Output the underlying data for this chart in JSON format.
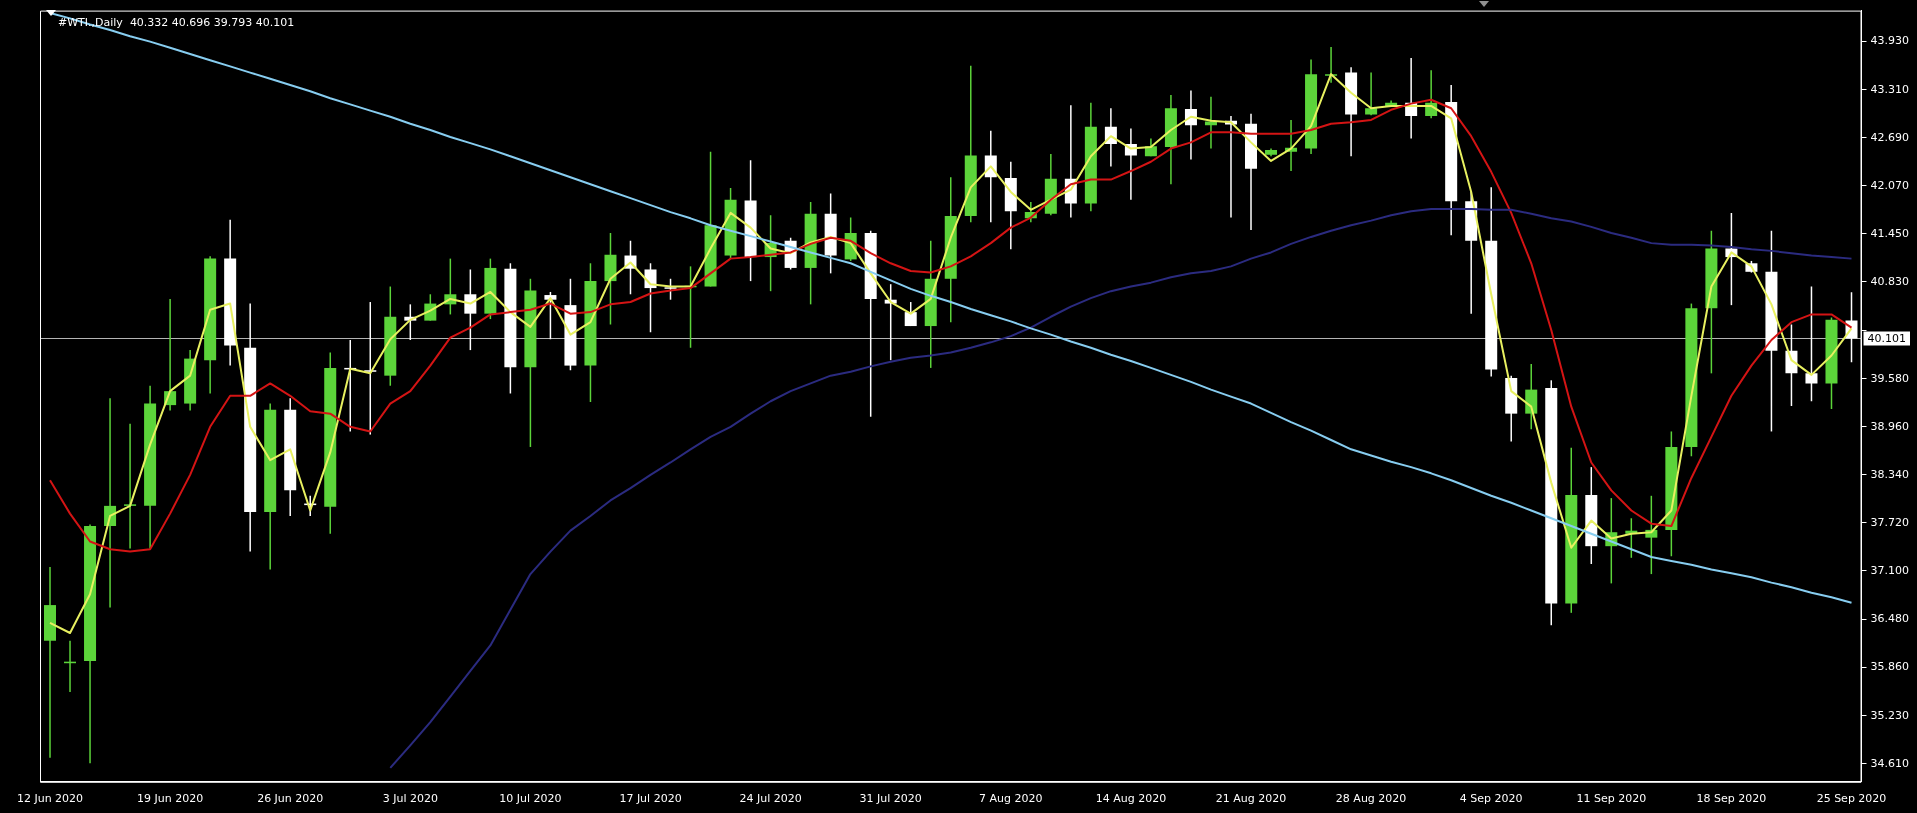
{
  "chart_data": {
    "type": "candlestick",
    "title": "#WTI.,Daily  40.332 40.696 39.793 40.101",
    "categories": [
      "12 Jun 2020",
      null,
      null,
      null,
      null,
      null,
      "19 Jun 2020",
      null,
      null,
      null,
      null,
      null,
      "26 Jun 2020",
      null,
      null,
      null,
      null,
      null,
      "3 Jul 2020",
      null,
      null,
      null,
      null,
      null,
      "10 Jul 2020",
      null,
      null,
      null,
      null,
      null,
      "17 Jul 2020",
      null,
      null,
      null,
      null,
      null,
      "24 Jul 2020",
      null,
      null,
      null,
      null,
      null,
      "31 Jul 2020",
      null,
      null,
      null,
      null,
      null,
      "7 Aug 2020",
      null,
      null,
      null,
      null,
      null,
      "14 Aug 2020",
      null,
      null,
      null,
      null,
      null,
      "21 Aug 2020",
      null,
      null,
      null,
      null,
      null,
      "28 Aug 2020",
      null,
      null,
      null,
      null,
      null,
      "4 Sep 2020",
      null,
      null,
      null,
      null,
      null,
      "11 Sep 2020",
      null,
      null,
      null,
      null,
      null,
      "18 Sep 2020",
      null,
      null,
      null,
      null,
      null,
      "25 Sep 2020"
    ],
    "ohlc": [
      [
        36.2,
        37.15,
        34.69,
        36.66
      ],
      [
        35.91,
        36.2,
        35.54,
        35.93
      ],
      [
        35.94,
        37.7,
        34.62,
        37.68
      ],
      [
        37.68,
        39.33,
        36.63,
        37.94
      ],
      [
        37.94,
        39.0,
        37.39,
        37.96
      ],
      [
        37.94,
        39.49,
        37.39,
        39.26
      ],
      [
        39.24,
        40.61,
        39.17,
        39.42
      ],
      [
        39.26,
        39.95,
        39.17,
        39.84
      ],
      [
        39.82,
        41.16,
        39.39,
        41.13
      ],
      [
        41.13,
        41.63,
        39.75,
        40.01
      ],
      [
        39.98,
        40.55,
        37.35,
        37.86
      ],
      [
        37.86,
        39.26,
        37.12,
        39.18
      ],
      [
        39.18,
        39.33,
        37.81,
        38.14
      ],
      [
        37.97,
        38.07,
        37.81,
        37.95
      ],
      [
        37.93,
        39.92,
        37.58,
        39.72
      ],
      [
        39.72,
        40.08,
        38.9,
        39.7
      ],
      [
        39.69,
        40.57,
        38.86,
        39.67
      ],
      [
        39.62,
        40.77,
        39.49,
        40.38
      ],
      [
        40.38,
        40.54,
        40.08,
        40.33
      ],
      [
        40.33,
        40.67,
        40.33,
        40.55
      ],
      [
        40.54,
        41.13,
        40.41,
        40.67
      ],
      [
        40.67,
        40.99,
        39.95,
        40.42
      ],
      [
        40.42,
        41.13,
        40.35,
        41.01
      ],
      [
        41.0,
        41.07,
        39.39,
        39.73
      ],
      [
        39.73,
        40.87,
        38.7,
        40.72
      ],
      [
        40.66,
        40.7,
        40.09,
        40.6
      ],
      [
        40.53,
        40.87,
        39.69,
        39.75
      ],
      [
        39.75,
        41.07,
        39.28,
        40.84
      ],
      [
        40.84,
        41.46,
        40.28,
        41.18
      ],
      [
        41.17,
        41.36,
        40.67,
        41.0
      ],
      [
        40.99,
        41.07,
        40.18,
        40.75
      ],
      [
        40.76,
        40.87,
        40.6,
        40.75
      ],
      [
        40.76,
        41.03,
        39.98,
        40.78
      ],
      [
        40.77,
        42.51,
        40.77,
        41.56
      ],
      [
        41.17,
        42.04,
        41.13,
        41.89
      ],
      [
        41.88,
        42.4,
        40.84,
        41.15
      ],
      [
        41.15,
        41.69,
        40.71,
        41.33
      ],
      [
        41.36,
        41.4,
        40.99,
        41.01
      ],
      [
        41.01,
        41.86,
        40.54,
        41.71
      ],
      [
        41.71,
        41.97,
        40.94,
        41.17
      ],
      [
        41.12,
        41.66,
        41.1,
        41.46
      ],
      [
        41.46,
        41.49,
        39.09,
        40.61
      ],
      [
        40.6,
        40.8,
        39.82,
        40.55
      ],
      [
        40.44,
        40.57,
        40.26,
        40.26
      ],
      [
        40.26,
        41.36,
        39.72,
        40.87
      ],
      [
        40.87,
        42.18,
        40.31,
        41.68
      ],
      [
        41.68,
        43.62,
        41.6,
        42.46
      ],
      [
        42.46,
        42.78,
        41.6,
        42.18
      ],
      [
        42.17,
        42.38,
        41.25,
        41.74
      ],
      [
        41.65,
        41.86,
        41.6,
        41.73
      ],
      [
        41.71,
        42.48,
        41.69,
        42.16
      ],
      [
        42.16,
        43.11,
        41.66,
        41.84
      ],
      [
        41.84,
        43.14,
        41.74,
        42.83
      ],
      [
        42.83,
        43.07,
        42.32,
        42.61
      ],
      [
        42.61,
        42.81,
        41.89,
        42.46
      ],
      [
        42.45,
        42.68,
        42.45,
        42.58
      ],
      [
        42.57,
        43.24,
        42.09,
        43.07
      ],
      [
        43.06,
        43.3,
        42.41,
        42.85
      ],
      [
        42.85,
        43.22,
        42.55,
        42.9
      ],
      [
        42.91,
        42.97,
        41.66,
        42.86
      ],
      [
        42.87,
        43.0,
        41.5,
        42.29
      ],
      [
        42.47,
        42.55,
        42.45,
        42.53
      ],
      [
        42.51,
        42.92,
        42.26,
        42.56
      ],
      [
        42.55,
        43.7,
        42.48,
        43.51
      ],
      [
        43.49,
        43.86,
        43.4,
        43.51
      ],
      [
        43.53,
        43.6,
        42.45,
        42.99
      ],
      [
        42.99,
        43.53,
        42.98,
        43.07
      ],
      [
        43.1,
        43.17,
        43.09,
        43.14
      ],
      [
        43.14,
        43.72,
        42.68,
        42.97
      ],
      [
        42.97,
        43.56,
        42.94,
        43.14
      ],
      [
        43.15,
        43.37,
        41.43,
        41.87
      ],
      [
        41.87,
        41.99,
        40.42,
        41.36
      ],
      [
        41.36,
        42.05,
        39.61,
        39.7
      ],
      [
        39.59,
        39.62,
        38.77,
        39.13
      ],
      [
        39.13,
        39.77,
        38.93,
        39.44
      ],
      [
        39.46,
        39.56,
        36.4,
        36.68
      ],
      [
        36.68,
        38.69,
        36.56,
        38.08
      ],
      [
        38.08,
        38.44,
        37.19,
        37.42
      ],
      [
        37.42,
        38.04,
        36.94,
        37.6
      ],
      [
        37.58,
        37.78,
        37.27,
        37.62
      ],
      [
        37.53,
        38.07,
        37.06,
        37.63
      ],
      [
        37.63,
        38.9,
        37.29,
        38.7
      ],
      [
        38.7,
        40.55,
        38.58,
        40.49
      ],
      [
        40.49,
        41.49,
        39.65,
        41.26
      ],
      [
        41.26,
        41.72,
        40.53,
        41.15
      ],
      [
        41.07,
        41.1,
        40.95,
        40.96
      ],
      [
        40.96,
        41.49,
        38.9,
        39.94
      ],
      [
        39.94,
        40.28,
        39.23,
        39.65
      ],
      [
        39.65,
        40.77,
        39.29,
        39.52
      ],
      [
        39.52,
        40.37,
        39.19,
        40.34
      ],
      [
        40.332,
        40.696,
        39.793,
        40.101
      ]
    ],
    "colors": [
      "#5cd43a",
      "#5cd43a",
      "#5cd43a",
      "#5cd43a",
      "#5cd43a",
      "#5cd43a",
      "#5cd43a",
      "#5cd43a",
      "#5cd43a",
      "#ffffff",
      "#ffffff",
      "#5cd43a",
      "#ffffff",
      "#ffffff",
      "#5cd43a",
      "#ffffff",
      "#ffffff",
      "#5cd43a",
      "#ffffff",
      "#5cd43a",
      "#5cd43a",
      "#ffffff",
      "#5cd43a",
      "#ffffff",
      "#5cd43a",
      "#ffffff",
      "#ffffff",
      "#5cd43a",
      "#5cd43a",
      "#ffffff",
      "#ffffff",
      "#ffffff",
      "#5cd43a",
      "#5cd43a",
      "#5cd43a",
      "#ffffff",
      "#5cd43a",
      "#ffffff",
      "#5cd43a",
      "#ffffff",
      "#5cd43a",
      "#ffffff",
      "#ffffff",
      "#ffffff",
      "#5cd43a",
      "#5cd43a",
      "#5cd43a",
      "#ffffff",
      "#ffffff",
      "#5cd43a",
      "#5cd43a",
      "#ffffff",
      "#5cd43a",
      "#ffffff",
      "#ffffff",
      "#5cd43a",
      "#5cd43a",
      "#ffffff",
      "#5cd43a",
      "#ffffff",
      "#ffffff",
      "#5cd43a",
      "#5cd43a",
      "#5cd43a",
      "#5cd43a",
      "#ffffff",
      "#5cd43a",
      "#5cd43a",
      "#ffffff",
      "#5cd43a",
      "#ffffff",
      "#ffffff",
      "#ffffff",
      "#ffffff",
      "#5cd43a",
      "#ffffff",
      "#5cd43a",
      "#ffffff",
      "#5cd43a",
      "#5cd43a",
      "#5cd43a",
      "#5cd43a",
      "#5cd43a",
      "#5cd43a",
      "#ffffff",
      "#ffffff",
      "#ffffff",
      "#ffffff",
      "#ffffff",
      "#5cd43a",
      "#ffffff"
    ],
    "series": [
      {
        "type": "line",
        "color": "#87cdf0",
        "values": [
          44.3,
          44.23,
          44.15,
          44.08,
          44.0,
          43.93,
          43.85,
          43.77,
          43.69,
          43.61,
          43.53,
          43.45,
          43.37,
          43.29,
          43.2,
          43.12,
          43.04,
          42.96,
          42.87,
          42.79,
          42.7,
          42.62,
          42.54,
          42.45,
          42.36,
          42.27,
          42.18,
          42.09,
          42.0,
          41.91,
          41.82,
          41.73,
          41.65,
          41.56,
          41.49,
          41.42,
          41.35,
          41.28,
          41.21,
          41.14,
          41.07,
          40.96,
          40.85,
          40.74,
          40.65,
          40.57,
          40.48,
          40.4,
          40.32,
          40.23,
          40.15,
          40.06,
          39.98,
          39.89,
          39.81,
          39.72,
          39.63,
          39.54,
          39.44,
          39.35,
          39.26,
          39.14,
          39.02,
          38.91,
          38.79,
          38.67,
          38.59,
          38.51,
          38.44,
          38.36,
          38.27,
          38.17,
          38.07,
          37.98,
          37.88,
          37.78,
          37.68,
          37.58,
          37.48,
          37.38,
          37.28,
          37.23,
          37.18,
          37.12,
          37.07,
          37.02,
          36.95,
          36.89,
          36.82,
          36.76,
          36.69
        ]
      },
      {
        "type": "line",
        "color": "#2b2b80",
        "values": [
          null,
          null,
          null,
          null,
          null,
          null,
          null,
          null,
          null,
          null,
          null,
          null,
          null,
          null,
          null,
          null,
          null,
          34.56,
          34.85,
          35.15,
          35.48,
          35.81,
          36.14,
          36.6,
          37.06,
          37.35,
          37.62,
          37.81,
          38.01,
          38.17,
          38.34,
          38.5,
          38.67,
          38.83,
          38.96,
          39.13,
          39.29,
          39.42,
          39.52,
          39.62,
          39.67,
          39.74,
          39.8,
          39.85,
          39.88,
          39.92,
          39.98,
          40.05,
          40.13,
          40.24,
          40.38,
          40.51,
          40.62,
          40.71,
          40.77,
          40.82,
          40.89,
          40.94,
          40.97,
          41.03,
          41.13,
          41.21,
          41.32,
          41.41,
          41.49,
          41.56,
          41.62,
          41.69,
          41.74,
          41.77,
          41.77,
          41.77,
          41.76,
          41.76,
          41.71,
          41.65,
          41.61,
          41.54,
          41.46,
          41.4,
          41.33,
          41.31,
          41.31,
          41.3,
          41.28,
          41.25,
          41.23,
          41.2,
          41.17,
          41.15,
          41.13
        ]
      },
      {
        "type": "line",
        "color": "#d41414",
        "values": [
          38.27,
          37.84,
          37.48,
          37.38,
          37.35,
          37.38,
          37.84,
          38.34,
          38.96,
          39.36,
          39.36,
          39.52,
          39.36,
          39.16,
          39.13,
          38.96,
          38.9,
          39.26,
          39.42,
          39.75,
          40.11,
          40.24,
          40.41,
          40.44,
          40.47,
          40.55,
          40.42,
          40.44,
          40.54,
          40.57,
          40.68,
          40.72,
          40.75,
          40.94,
          41.13,
          41.15,
          41.18,
          41.21,
          41.32,
          41.4,
          41.36,
          41.2,
          41.07,
          40.97,
          40.95,
          41.03,
          41.16,
          41.33,
          41.53,
          41.66,
          41.89,
          42.09,
          42.15,
          42.15,
          42.26,
          42.38,
          42.55,
          42.63,
          42.76,
          42.76,
          42.74,
          42.74,
          42.74,
          42.79,
          42.87,
          42.89,
          42.92,
          43.05,
          43.13,
          43.18,
          43.07,
          42.71,
          42.25,
          41.72,
          41.07,
          40.21,
          39.22,
          38.5,
          38.14,
          37.88,
          37.71,
          37.68,
          38.3,
          38.83,
          39.36,
          39.75,
          40.08,
          40.31,
          40.41,
          40.41,
          40.24
        ]
      },
      {
        "type": "line",
        "color": "#e8f060",
        "values": [
          36.43,
          36.3,
          36.8,
          37.81,
          37.94,
          38.73,
          39.42,
          39.62,
          40.47,
          40.55,
          38.96,
          38.53,
          38.67,
          37.88,
          38.63,
          39.71,
          39.65,
          40.09,
          40.34,
          40.46,
          40.61,
          40.55,
          40.7,
          40.44,
          40.25,
          40.62,
          40.15,
          40.31,
          40.87,
          41.08,
          40.8,
          40.77,
          40.77,
          41.26,
          41.72,
          41.53,
          41.26,
          41.2,
          41.34,
          41.41,
          41.33,
          40.94,
          40.57,
          40.42,
          40.61,
          41.4,
          42.05,
          42.32,
          41.99,
          41.76,
          41.89,
          42.02,
          42.45,
          42.71,
          42.55,
          42.57,
          42.79,
          42.96,
          42.91,
          42.89,
          42.63,
          42.39,
          42.55,
          42.84,
          43.51,
          43.27,
          43.07,
          43.1,
          43.1,
          43.1,
          42.94,
          41.99,
          40.67,
          39.42,
          39.22,
          38.24,
          37.4,
          37.75,
          37.52,
          37.58,
          37.6,
          37.88,
          39.36,
          40.77,
          41.21,
          41.03,
          40.54,
          39.82,
          39.63,
          39.88,
          40.23
        ]
      }
    ],
    "ylim": [
      34.38,
      44.33
    ],
    "yticks": [
      {
        "value": 34.61,
        "label": "34.610"
      },
      {
        "value": 35.23,
        "label": "35.230"
      },
      {
        "value": 35.86,
        "label": "35.860"
      },
      {
        "value": 36.48,
        "label": "36.480"
      },
      {
        "value": 37.1,
        "label": "37.100"
      },
      {
        "value": 37.72,
        "label": "37.720"
      },
      {
        "value": 38.34,
        "label": "38.340"
      },
      {
        "value": 38.96,
        "label": "38.960"
      },
      {
        "value": 39.58,
        "label": "39.580"
      },
      {
        "value": 40.2,
        "label": null
      },
      {
        "value": 40.83,
        "label": "40.830"
      },
      {
        "value": 41.45,
        "label": "41.450"
      },
      {
        "value": 42.07,
        "label": "42.070"
      },
      {
        "value": 42.69,
        "label": "42.690"
      },
      {
        "value": 43.31,
        "label": "43.310"
      },
      {
        "value": 43.93,
        "label": "43.930"
      }
    ],
    "ref_lines": [
      {
        "axis": "y",
        "value": 40.101,
        "label": "40.101",
        "color": "#b4b4b4"
      }
    ]
  }
}
